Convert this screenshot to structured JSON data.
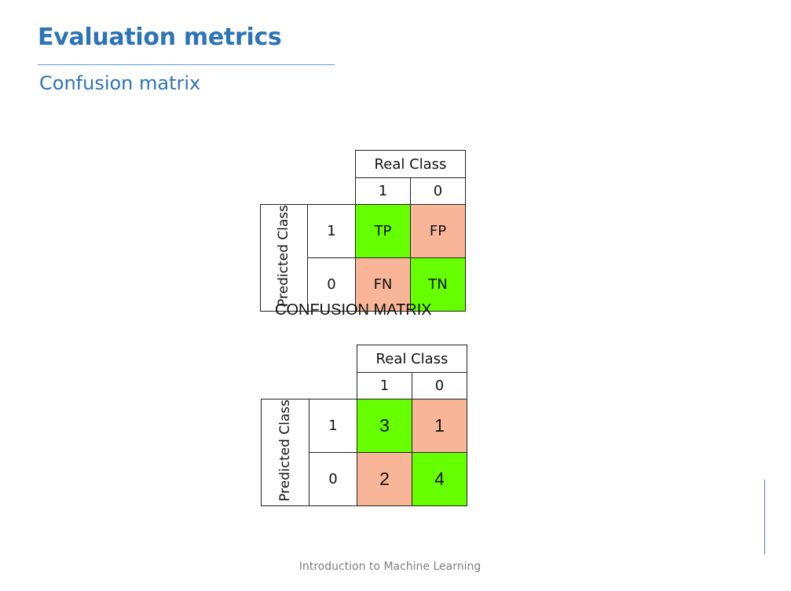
{
  "slide": {
    "title": "Evaluation metrics",
    "subtitle": "Confusion matrix",
    "caption": "CONFUSION MATRIX",
    "footer": "Introduction to Machine Learning"
  },
  "matrix_symbolic": {
    "real_class_label": "Real Class",
    "predicted_class_label": "Predicted Class",
    "col_labels": [
      "1",
      "0"
    ],
    "row_labels": [
      "1",
      "0"
    ],
    "cells": [
      [
        "TP",
        "FP"
      ],
      [
        "FN",
        "TN"
      ]
    ]
  },
  "matrix_example": {
    "real_class_label": "Real Class",
    "predicted_class_label": "Predicted Class",
    "col_labels": [
      "1",
      "0"
    ],
    "row_labels": [
      "1",
      "0"
    ],
    "cells": [
      [
        "3",
        "1"
      ],
      [
        "2",
        "4"
      ]
    ]
  },
  "colors": {
    "title": "#2e74b5",
    "correct_cell": "#66ff00",
    "incorrect_cell": "#f9b598"
  }
}
